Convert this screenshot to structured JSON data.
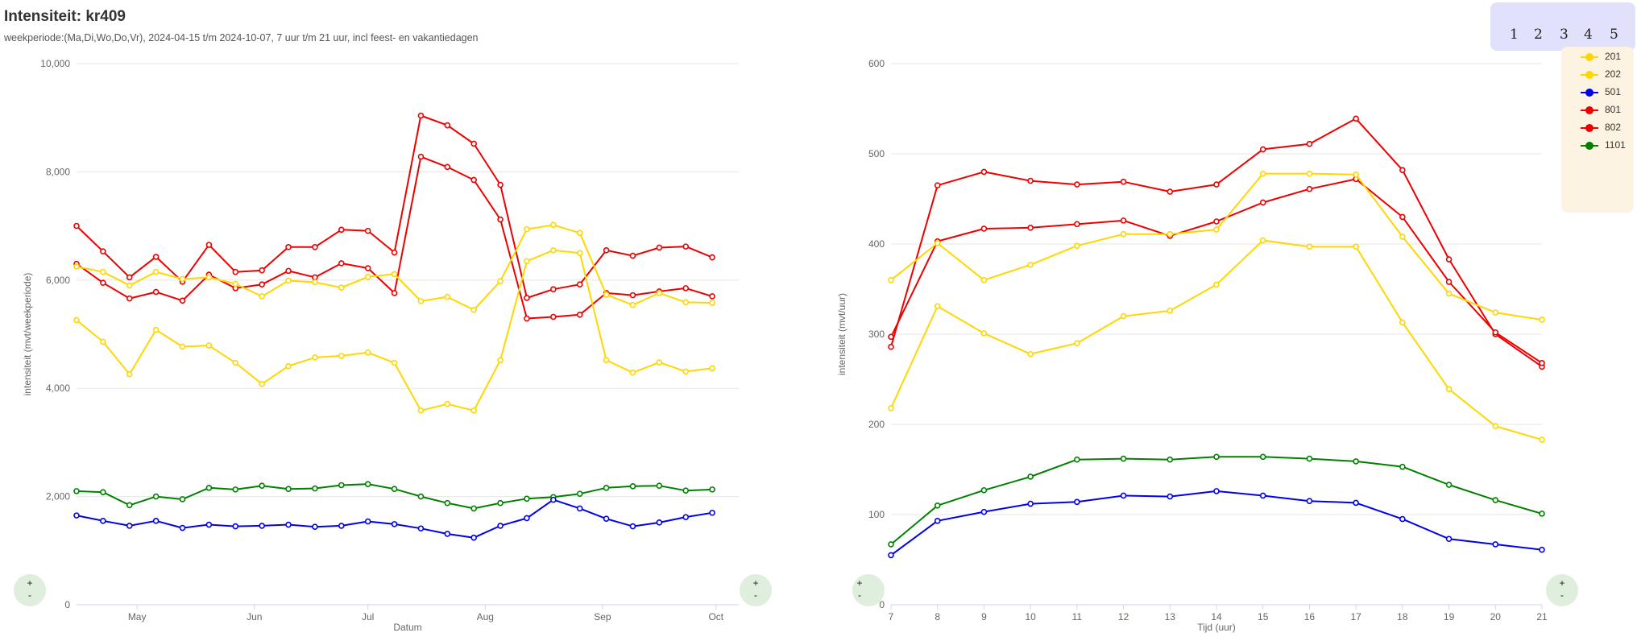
{
  "header": {
    "title": "Intensiteit: kr409",
    "subtitle": "weekperiode:(Ma,Di,Wo,Do,Vr), 2024-04-15 t/m 2024-10-07, 7 uur t/m 21 uur, incl feest- en vakantiedagen"
  },
  "pager": {
    "pages": [
      "1",
      "2",
      "3",
      "4",
      "5"
    ]
  },
  "zoom": {
    "plus": "+",
    "minus": "-"
  },
  "legend": [
    {
      "name": "201",
      "color": "#ffd700"
    },
    {
      "name": "202",
      "color": "#ffd700"
    },
    {
      "name": "501",
      "color": "#0000ee"
    },
    {
      "name": "801",
      "color": "#ee0000"
    },
    {
      "name": "802",
      "color": "#ee0000"
    },
    {
      "name": "1101",
      "color": "#008000"
    }
  ],
  "chart_data": [
    {
      "type": "line",
      "title": "",
      "xlabel": "Datum",
      "ylabel": "intensiteit (mvt/weekperiode)",
      "ylim": [
        0,
        10000
      ],
      "yticks": [
        0,
        2000,
        4000,
        6000,
        8000,
        10000
      ],
      "ytick_labels": [
        "0",
        "2,000",
        "4,000",
        "6,000",
        "8,000",
        "10,000"
      ],
      "x": [
        "2024-04-15",
        "2024-04-22",
        "2024-04-29",
        "2024-05-06",
        "2024-05-13",
        "2024-05-20",
        "2024-05-27",
        "2024-06-03",
        "2024-06-10",
        "2024-06-17",
        "2024-06-24",
        "2024-07-01",
        "2024-07-08",
        "2024-07-15",
        "2024-07-22",
        "2024-07-29",
        "2024-08-05",
        "2024-08-12",
        "2024-08-19",
        "2024-08-26",
        "2024-09-02",
        "2024-09-09",
        "2024-09-16",
        "2024-09-23",
        "2024-09-30",
        "2024-10-07"
      ],
      "xlim": [
        "2024-04-15",
        "2024-10-07"
      ],
      "xticks": [
        "2024-05-01",
        "2024-06-01",
        "2024-07-01",
        "2024-08-01",
        "2024-09-01",
        "2024-10-01"
      ],
      "xtick_labels": [
        "May",
        "Jun",
        "Jul",
        "Aug",
        "Sep",
        "Oct"
      ],
      "grid": true,
      "series": [
        {
          "color": "#ee0000",
          "values": [
            7000,
            6530,
            6050,
            6430,
            5970,
            6650,
            6150,
            6180,
            6610,
            6610,
            6930,
            6910,
            6510,
            9040,
            8860,
            8520,
            7760,
            5670,
            5830,
            5920,
            6550,
            6450,
            6600,
            6620,
            6420,
            null
          ]
        },
        {
          "color": "#ee0000",
          "values": [
            6300,
            5950,
            5660,
            5780,
            5620,
            6100,
            5850,
            5920,
            6170,
            6050,
            6310,
            6220,
            5760,
            8280,
            8090,
            7850,
            7120,
            5290,
            5320,
            5360,
            5760,
            5720,
            5790,
            5850,
            5700,
            null
          ]
        },
        {
          "color": "#ffd700",
          "values": [
            6250,
            6150,
            5900,
            6150,
            6020,
            6050,
            5930,
            5700,
            5990,
            5960,
            5860,
            6060,
            6110,
            5610,
            5690,
            5450,
            5980,
            6940,
            7020,
            6870,
            5730,
            5540,
            5760,
            5590,
            5580,
            null
          ]
        },
        {
          "color": "#ffd700",
          "values": [
            5260,
            4860,
            4260,
            5080,
            4770,
            4790,
            4470,
            4080,
            4410,
            4570,
            4600,
            4660,
            4470,
            3590,
            3710,
            3590,
            4520,
            6350,
            6550,
            6500,
            4520,
            4290,
            4480,
            4310,
            4370,
            null
          ]
        },
        {
          "color": "#008000",
          "values": [
            2100,
            2080,
            1840,
            2000,
            1950,
            2160,
            2130,
            2200,
            2140,
            2150,
            2210,
            2230,
            2140,
            2000,
            1880,
            1780,
            1880,
            1960,
            1990,
            2050,
            2160,
            2190,
            2200,
            2110,
            2130,
            null
          ]
        },
        {
          "color": "#0000ee",
          "values": [
            1650,
            1550,
            1460,
            1550,
            1420,
            1480,
            1450,
            1460,
            1480,
            1440,
            1460,
            1540,
            1490,
            1410,
            1310,
            1240,
            1460,
            1600,
            1940,
            1780,
            1590,
            1450,
            1520,
            1620,
            1700,
            null
          ]
        }
      ]
    },
    {
      "type": "line",
      "title": "",
      "xlabel": "Tijd (uur)",
      "ylabel": "intensiteit (mvt/uur)",
      "ylim": [
        0,
        600
      ],
      "yticks": [
        0,
        100,
        200,
        300,
        400,
        500,
        600
      ],
      "x": [
        7,
        8,
        9,
        10,
        11,
        12,
        13,
        14,
        15,
        16,
        17,
        18,
        19,
        20,
        21
      ],
      "xlim": [
        7,
        21
      ],
      "grid": true,
      "series": [
        {
          "color": "#ee0000",
          "values": [
            286,
            465,
            480,
            470,
            466,
            469,
            458,
            466,
            505,
            511,
            539,
            482,
            383,
            300,
            264
          ]
        },
        {
          "color": "#ee0000",
          "values": [
            297,
            403,
            417,
            418,
            422,
            426,
            409,
            425,
            446,
            461,
            472,
            430,
            358,
            302,
            268
          ]
        },
        {
          "color": "#ffd700",
          "values": [
            360,
            401,
            360,
            377,
            398,
            411,
            411,
            416,
            478,
            478,
            477,
            408,
            345,
            324,
            316
          ]
        },
        {
          "color": "#ffd700",
          "values": [
            218,
            331,
            301,
            278,
            290,
            320,
            326,
            355,
            404,
            397,
            397,
            313,
            239,
            198,
            183
          ]
        },
        {
          "color": "#008000",
          "values": [
            67,
            110,
            127,
            142,
            161,
            162,
            161,
            164,
            164,
            162,
            159,
            153,
            133,
            116,
            101
          ]
        },
        {
          "color": "#0000ee",
          "values": [
            55,
            93,
            103,
            112,
            114,
            121,
            120,
            126,
            121,
            115,
            113,
            95,
            73,
            67,
            61
          ]
        }
      ]
    }
  ]
}
